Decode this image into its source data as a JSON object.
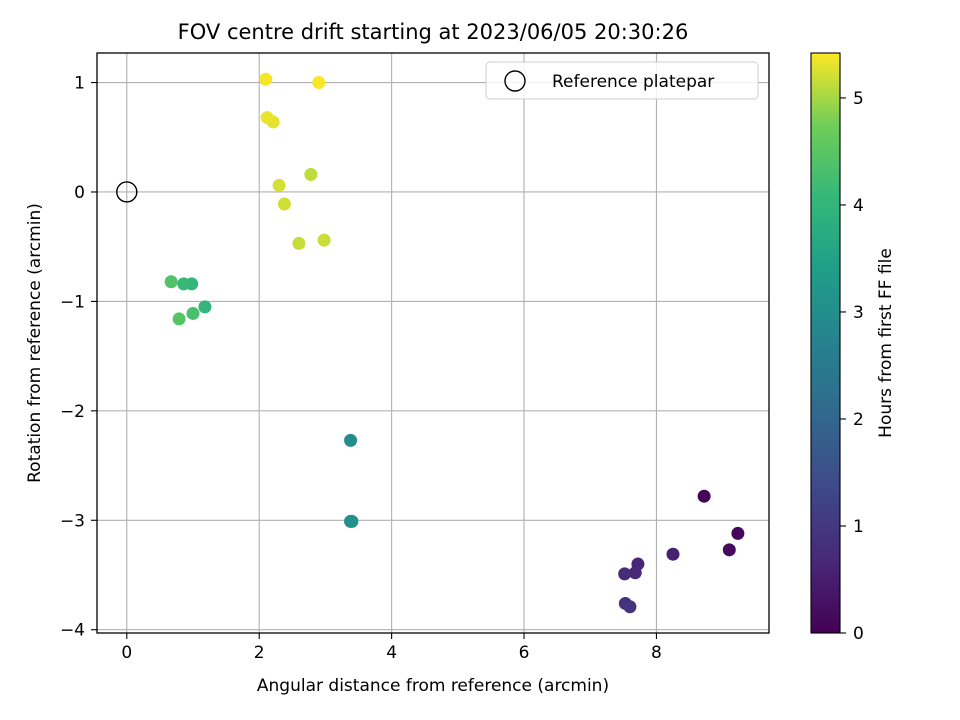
{
  "chart_data": {
    "type": "scatter",
    "title": "FOV centre drift starting at 2023/06/05 20:30:26",
    "xlabel": "Angular distance from reference (arcmin)",
    "ylabel": "Rotation from reference (arcmin)",
    "xlim": [
      -0.45,
      9.7
    ],
    "ylim": [
      -4.03,
      1.27
    ],
    "xticks": [
      0,
      2,
      4,
      6,
      8
    ],
    "yticks": [
      1,
      0,
      -1,
      -2,
      -3,
      -4
    ],
    "xtick_labels": [
      "0",
      "2",
      "4",
      "6",
      "8"
    ],
    "ytick_labels": [
      "1",
      "0",
      "−1",
      "−2",
      "−3",
      "−4"
    ],
    "grid": true,
    "legend": {
      "placement": "upper right",
      "entries": [
        "Reference platepar"
      ]
    },
    "reference_point": {
      "x": 0,
      "y": 0,
      "label": "Reference platepar",
      "marker": "open-circle"
    },
    "colorbar": {
      "label": "Hours from first FF file",
      "colormap": "viridis",
      "range": [
        0,
        5.42
      ],
      "ticks": [
        0,
        1,
        2,
        3,
        4,
        5
      ],
      "tick_labels": [
        "0",
        "1",
        "2",
        "3",
        "4",
        "5"
      ]
    },
    "points": [
      {
        "x": 8.72,
        "y": -2.78,
        "c": 0.05
      },
      {
        "x": 9.23,
        "y": -3.12,
        "c": 0.1
      },
      {
        "x": 9.1,
        "y": -3.27,
        "c": 0.15
      },
      {
        "x": 8.25,
        "y": -3.31,
        "c": 0.55
      },
      {
        "x": 7.72,
        "y": -3.4,
        "c": 0.62
      },
      {
        "x": 7.68,
        "y": -3.48,
        "c": 0.7
      },
      {
        "x": 7.52,
        "y": -3.49,
        "c": 0.75
      },
      {
        "x": 7.53,
        "y": -3.76,
        "c": 0.85
      },
      {
        "x": 7.6,
        "y": -3.79,
        "c": 0.9
      },
      {
        "x": 3.38,
        "y": -2.27,
        "c": 2.95
      },
      {
        "x": 3.38,
        "y": -3.01,
        "c": 3.0
      },
      {
        "x": 3.4,
        "y": -3.01,
        "c": 3.05
      },
      {
        "x": 1.18,
        "y": -1.05,
        "c": 4.0
      },
      {
        "x": 0.98,
        "y": -0.84,
        "c": 4.05
      },
      {
        "x": 0.86,
        "y": -0.84,
        "c": 4.1
      },
      {
        "x": 1.0,
        "y": -1.11,
        "c": 4.3
      },
      {
        "x": 0.67,
        "y": -0.82,
        "c": 4.4
      },
      {
        "x": 0.79,
        "y": -1.16,
        "c": 4.45
      },
      {
        "x": 2.6,
        "y": -0.47,
        "c": 5.15
      },
      {
        "x": 2.98,
        "y": -0.44,
        "c": 5.18
      },
      {
        "x": 2.78,
        "y": 0.16,
        "c": 5.12
      },
      {
        "x": 2.38,
        "y": -0.11,
        "c": 5.2
      },
      {
        "x": 2.3,
        "y": 0.06,
        "c": 5.22
      },
      {
        "x": 2.21,
        "y": 0.64,
        "c": 5.3
      },
      {
        "x": 2.12,
        "y": 0.68,
        "c": 5.32
      },
      {
        "x": 2.1,
        "y": 1.03,
        "c": 5.38
      },
      {
        "x": 2.9,
        "y": 1.0,
        "c": 5.4
      }
    ]
  }
}
